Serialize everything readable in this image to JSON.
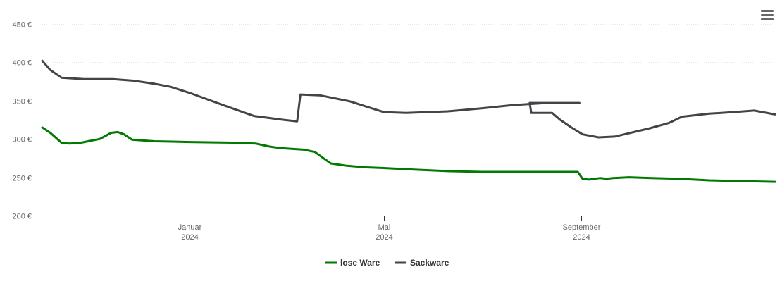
{
  "menu": {
    "icon": "hamburger-menu-icon"
  },
  "chart_data": {
    "type": "line",
    "title": "",
    "xlabel": "",
    "ylabel": "",
    "ylim": [
      200,
      450
    ],
    "yticks": [
      200,
      250,
      300,
      350,
      400,
      450
    ],
    "ytick_labels": [
      "200 €",
      "250 €",
      "300 €",
      "350 €",
      "400 €",
      "450 €"
    ],
    "xlim": [
      "2023-10-01",
      "2024-12-31"
    ],
    "xticks": [
      {
        "date": "2024-01-01",
        "label": "Januar",
        "year": "2024"
      },
      {
        "date": "2024-05-01",
        "label": "Mai",
        "year": "2024"
      },
      {
        "date": "2024-09-01",
        "label": "September",
        "year": "2024"
      }
    ],
    "grid": true,
    "legend": "bottom-center",
    "series": [
      {
        "name": "lose Ware",
        "color": "#007a00",
        "points": [
          [
            "2023-10-01",
            315
          ],
          [
            "2023-10-06",
            308
          ],
          [
            "2023-10-13",
            295
          ],
          [
            "2023-10-18",
            294
          ],
          [
            "2023-10-25",
            295
          ],
          [
            "2023-11-06",
            300
          ],
          [
            "2023-11-13",
            308
          ],
          [
            "2023-11-17",
            309
          ],
          [
            "2023-11-21",
            306
          ],
          [
            "2023-11-26",
            299
          ],
          [
            "2023-12-10",
            297
          ],
          [
            "2024-01-01",
            296
          ],
          [
            "2024-02-01",
            295
          ],
          [
            "2024-02-11",
            294
          ],
          [
            "2024-02-20",
            290
          ],
          [
            "2024-02-27",
            288
          ],
          [
            "2024-03-12",
            286
          ],
          [
            "2024-03-19",
            283
          ],
          [
            "2024-03-29",
            268
          ],
          [
            "2024-04-08",
            265
          ],
          [
            "2024-04-20",
            263
          ],
          [
            "2024-05-01",
            262
          ],
          [
            "2024-05-20",
            260
          ],
          [
            "2024-06-10",
            258
          ],
          [
            "2024-07-01",
            257
          ],
          [
            "2024-08-01",
            257
          ],
          [
            "2024-08-30",
            257
          ],
          [
            "2024-09-02",
            248
          ],
          [
            "2024-09-06",
            247
          ],
          [
            "2024-09-13",
            249
          ],
          [
            "2024-09-17",
            248
          ],
          [
            "2024-09-21",
            249
          ],
          [
            "2024-10-01",
            250
          ],
          [
            "2024-10-15",
            249
          ],
          [
            "2024-11-01",
            248
          ],
          [
            "2024-11-20",
            246
          ],
          [
            "2024-12-31",
            244
          ]
        ]
      },
      {
        "name": "Sackware",
        "color": "#434348",
        "points": [
          [
            "2023-10-01",
            402
          ],
          [
            "2023-10-06",
            390
          ],
          [
            "2023-10-13",
            380
          ],
          [
            "2023-10-27",
            378
          ],
          [
            "2023-11-14",
            378
          ],
          [
            "2023-11-27",
            376
          ],
          [
            "2023-12-10",
            372
          ],
          [
            "2023-12-20",
            368
          ],
          [
            "2024-01-01",
            360
          ],
          [
            "2024-01-22",
            344
          ],
          [
            "2024-02-10",
            330
          ],
          [
            "2024-02-28",
            325
          ],
          [
            "2024-03-08",
            323
          ],
          [
            "2024-03-10",
            358
          ],
          [
            "2024-03-22",
            357
          ],
          [
            "2024-04-10",
            349
          ],
          [
            "2024-04-25",
            339
          ],
          [
            "2024-05-01",
            335
          ],
          [
            "2024-05-15",
            334
          ],
          [
            "2024-06-10",
            336
          ],
          [
            "2024-07-01",
            340
          ],
          [
            "2024-07-20",
            344
          ],
          [
            "2024-08-10",
            347
          ],
          [
            "2024-08-31",
            347
          ],
          [
            "2024-07-31",
            347
          ],
          [
            "2024-08-01",
            334
          ],
          [
            "2024-08-14",
            334
          ],
          [
            "2024-08-19",
            325
          ],
          [
            "2024-08-26",
            315
          ],
          [
            "2024-09-02",
            306
          ],
          [
            "2024-09-12",
            302
          ],
          [
            "2024-09-22",
            303
          ],
          [
            "2024-10-02",
            308
          ],
          [
            "2024-10-14",
            314
          ],
          [
            "2024-10-26",
            321
          ],
          [
            "2024-11-03",
            329
          ],
          [
            "2024-11-20",
            333
          ],
          [
            "2024-12-05",
            335
          ],
          [
            "2024-12-18",
            337
          ],
          [
            "2024-12-31",
            332
          ]
        ]
      }
    ]
  }
}
